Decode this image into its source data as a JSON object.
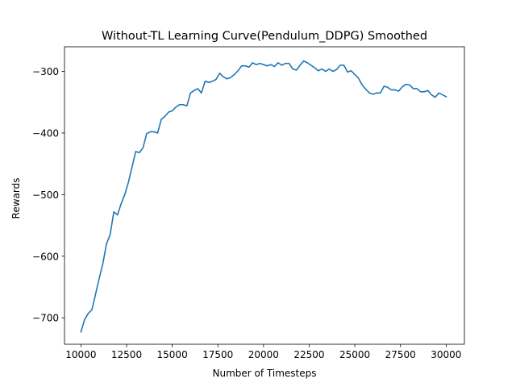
{
  "chart_data": {
    "type": "line",
    "title": "Without-TL Learning Curve(Pendulum_DDPG) Smoothed",
    "xlabel": "Number of Timesteps",
    "ylabel": "Rewards",
    "xlim": [
      9100,
      31000
    ],
    "ylim": [
      -743,
      -260
    ],
    "xticks": [
      10000,
      12500,
      15000,
      17500,
      20000,
      22500,
      25000,
      27500,
      30000
    ],
    "xtick_labels": [
      "10000",
      "12500",
      "15000",
      "17500",
      "20000",
      "22500",
      "25000",
      "27500",
      "30000"
    ],
    "yticks": [
      -700,
      -600,
      -500,
      -400,
      -300
    ],
    "ytick_labels": [
      "−700",
      "−600",
      "−500",
      "−400",
      "−300"
    ],
    "grid": false,
    "legend": "none",
    "series": [
      {
        "color": "#1f77b4",
        "x": [
          10000,
          10200,
          10400,
          10600,
          10800,
          11000,
          11200,
          11400,
          11600,
          11800,
          12000,
          12200,
          12400,
          12600,
          12800,
          13000,
          13200,
          13400,
          13600,
          13800,
          14000,
          14200,
          14400,
          14600,
          14800,
          15000,
          15200,
          15400,
          15600,
          15800,
          16000,
          16200,
          16400,
          16600,
          16800,
          17000,
          17200,
          17400,
          17600,
          17800,
          18000,
          18200,
          18400,
          18600,
          18800,
          19000,
          19200,
          19400,
          19600,
          19800,
          20000,
          20200,
          20400,
          20600,
          20800,
          21000,
          21200,
          21400,
          21600,
          21800,
          22000,
          22200,
          22400,
          22600,
          22800,
          23000,
          23200,
          23400,
          23600,
          23800,
          24000,
          24200,
          24400,
          24600,
          24800,
          25000,
          25200,
          25400,
          25600,
          25800,
          26000,
          26200,
          26400,
          26600,
          26800,
          27000,
          27200,
          27400,
          27600,
          27800,
          28000,
          28200,
          28400,
          28600,
          28800,
          29000,
          29200,
          29400,
          29600,
          29800,
          30000
        ],
        "y": [
          -723,
          -703,
          -693,
          -687,
          -662,
          -636,
          -612,
          -580,
          -565,
          -528,
          -533,
          -515,
          -500,
          -480,
          -455,
          -430,
          -432,
          -424,
          -401,
          -398,
          -398,
          -400,
          -378,
          -373,
          -366,
          -364,
          -358,
          -354,
          -354,
          -356,
          -335,
          -331,
          -328,
          -335,
          -316,
          -318,
          -316,
          -313,
          -303,
          -309,
          -312,
          -310,
          -305,
          -299,
          -291,
          -291,
          -293,
          -286,
          -289,
          -287,
          -289,
          -291,
          -289,
          -292,
          -286,
          -290,
          -287,
          -287,
          -296,
          -298,
          -290,
          -283,
          -286,
          -290,
          -294,
          -299,
          -296,
          -300,
          -296,
          -300,
          -297,
          -290,
          -290,
          -301,
          -299,
          -305,
          -311,
          -322,
          -329,
          -335,
          -337,
          -335,
          -335,
          -324,
          -326,
          -330,
          -330,
          -332,
          -325,
          -321,
          -322,
          -328,
          -328,
          -333,
          -333,
          -331,
          -338,
          -342,
          -335,
          -338,
          -341
        ]
      }
    ]
  }
}
